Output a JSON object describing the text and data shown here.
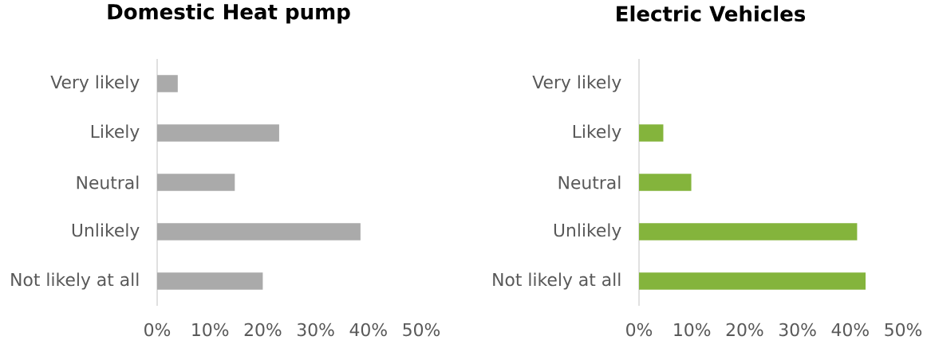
{
  "chart_data": [
    {
      "type": "bar",
      "orientation": "horizontal",
      "title": "Domestic Heat pump",
      "categories": [
        "Very likely",
        "Likely",
        "Neutral",
        "Unlikely",
        "Not likely at all"
      ],
      "values": [
        3.9,
        23.1,
        14.7,
        38.5,
        20.0
      ],
      "color": "#aaaaaa",
      "xlim": [
        0,
        50
      ],
      "xticks": [
        {
          "value": 0,
          "label": "0%"
        },
        {
          "value": 10,
          "label": "10%"
        },
        {
          "value": 20,
          "label": "20%"
        },
        {
          "value": 30,
          "label": "30%"
        },
        {
          "value": 40,
          "label": "40%"
        },
        {
          "value": 50,
          "label": "50%"
        }
      ]
    },
    {
      "type": "bar",
      "orientation": "horizontal",
      "title": "Electric Vehicles",
      "categories": [
        "Very likely",
        "Likely",
        "Neutral",
        "Unlikely",
        "Not likely at all"
      ],
      "values": [
        0,
        4.6,
        9.9,
        41.3,
        42.9
      ],
      "color": "#84b43c",
      "xlim": [
        0,
        50
      ],
      "xticks": [
        {
          "value": 0,
          "label": "0%"
        },
        {
          "value": 10,
          "label": "10%"
        },
        {
          "value": 20,
          "label": "20%"
        },
        {
          "value": 30,
          "label": "30%"
        },
        {
          "value": 40,
          "label": "40%"
        },
        {
          "value": 50,
          "label": "50%"
        }
      ]
    }
  ]
}
